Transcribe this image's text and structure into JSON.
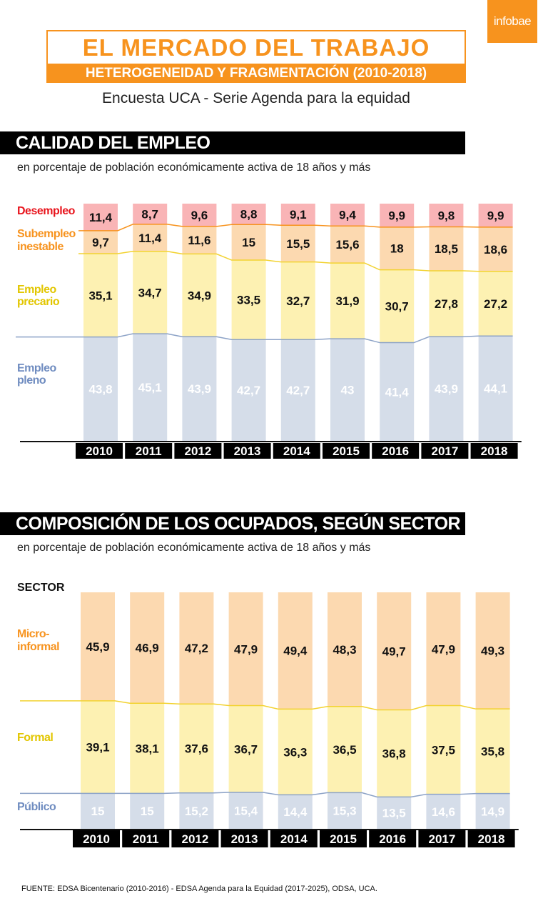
{
  "brand": {
    "logo_text": "infobae",
    "accent": "#f7931e"
  },
  "header": {
    "title": "EL MERCADO DEL TRABAJO",
    "band": "HETEROGENEIDAD Y FRAGMENTACIÓN (2010-2018)",
    "subtitle": "Encuesta UCA - Serie Agenda para la equidad"
  },
  "footer": "FUENTE: EDSA Bicentenario (2010-2016) - EDSA Agenda para la Equidad (2017-2025), ODSA, UCA.",
  "sections": [
    {
      "title": "CALIDAD DEL EMPLEO",
      "subtitle": "en porcentaje de población económicamente activa de 18 años y más"
    },
    {
      "title": "COMPOSICIÓN DE LOS OCUPADOS, SEGÚN SECTOR",
      "subtitle": "en porcentaje de población económicamente activa de 18 años y más"
    }
  ],
  "chart_data": [
    {
      "type": "bar",
      "stacked": true,
      "title": "CALIDAD DEL EMPLEO",
      "categories": [
        "2010",
        "2011",
        "2012",
        "2013",
        "2014",
        "2015",
        "2016",
        "2017",
        "2018"
      ],
      "ylim": [
        0,
        100
      ],
      "series_order": "top-to-bottom",
      "series": [
        {
          "name": "Desempleo",
          "color": "#f9b4b6",
          "label_color": "#e8141c",
          "line_color": "#f7931e",
          "value_color": "#111111",
          "values": [
            11.4,
            8.7,
            9.6,
            8.8,
            9.1,
            9.4,
            9.9,
            9.8,
            9.9
          ]
        },
        {
          "name": "Subempleo inestable",
          "color": "#fcd9b0",
          "label_color": "#f7931e",
          "line_color": "#f2d230",
          "value_color": "#111111",
          "values": [
            9.7,
            11.4,
            11.6,
            15,
            15.5,
            15.6,
            18,
            18.5,
            18.6
          ]
        },
        {
          "name": "Empleo precario",
          "color": "#fdf1b2",
          "label_color": "#e2c600",
          "line_color": "#8da3c7",
          "value_color": "#111111",
          "values": [
            35.1,
            34.7,
            34.9,
            33.5,
            32.7,
            31.9,
            30.7,
            27.8,
            27.2
          ]
        },
        {
          "name": "Empleo pleno",
          "color": "#d5dde9",
          "label_color": "#6f8cc0",
          "line_color": "",
          "value_color": "#ffffff",
          "values": [
            43.8,
            45.1,
            43.9,
            42.7,
            42.7,
            43,
            41.4,
            43.9,
            44.1
          ]
        }
      ]
    },
    {
      "type": "bar",
      "stacked": true,
      "title": "COMPOSICIÓN DE LOS OCUPADOS, SEGÚN SECTOR",
      "legend_title": "SECTOR",
      "categories": [
        "2010",
        "2011",
        "2012",
        "2013",
        "2014",
        "2015",
        "2016",
        "2017",
        "2018"
      ],
      "ylim": [
        0,
        100
      ],
      "series_order": "top-to-bottom",
      "series": [
        {
          "name": "Micro-informal",
          "color": "#fcd9b0",
          "label_color": "#f7931e",
          "line_color": "#f2d230",
          "value_color": "#111111",
          "values": [
            45.9,
            46.9,
            47.2,
            47.9,
            49.4,
            48.3,
            49.7,
            47.9,
            49.3
          ]
        },
        {
          "name": "Formal",
          "color": "#fdf1b2",
          "label_color": "#e2c600",
          "line_color": "#8da3c7",
          "value_color": "#111111",
          "values": [
            39.1,
            38.1,
            37.6,
            36.7,
            36.3,
            36.5,
            36.8,
            37.5,
            35.8
          ]
        },
        {
          "name": "Público",
          "color": "#d5dde9",
          "label_color": "#6f8cc0",
          "line_color": "",
          "value_color": "#ffffff",
          "values": [
            15,
            15,
            15.2,
            15.4,
            14.4,
            15.3,
            13.5,
            14.6,
            14.9
          ]
        }
      ]
    }
  ]
}
